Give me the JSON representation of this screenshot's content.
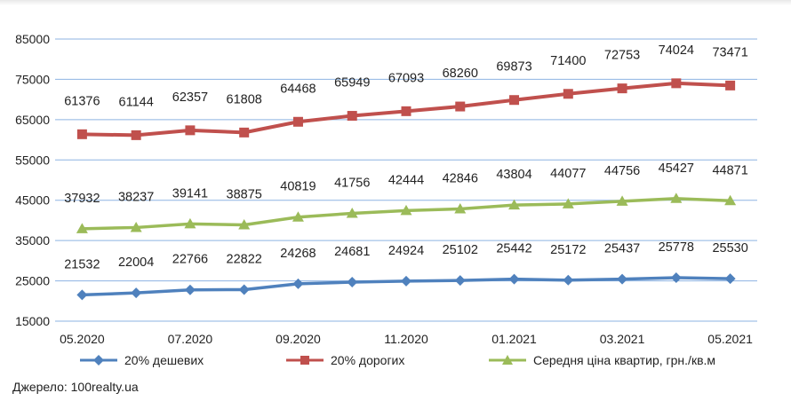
{
  "chart_data": {
    "type": "line",
    "title": "",
    "xlabel": "",
    "ylabel": "",
    "ylim": [
      15000,
      85000
    ],
    "yticks": [
      15000,
      25000,
      35000,
      45000,
      55000,
      65000,
      75000,
      85000
    ],
    "grid": "horizontal",
    "legend_position": "bottom",
    "x": [
      "05.2020",
      "06.2020",
      "07.2020",
      "08.2020",
      "09.2020",
      "10.2020",
      "11.2020",
      "12.2020",
      "01.2021",
      "02.2021",
      "03.2021",
      "04.2021",
      "05.2021"
    ],
    "x_tick_labels": [
      "05.2020",
      "07.2020",
      "09.2020",
      "11.2020",
      "01.2021",
      "03.2021",
      "05.2021"
    ],
    "series": [
      {
        "name": "20% дешевих",
        "color": "#4f81bd",
        "marker": "diamond",
        "values": [
          21532,
          22004,
          22766,
          22822,
          24268,
          24681,
          24924,
          25102,
          25442,
          25172,
          25437,
          25778,
          25530
        ]
      },
      {
        "name": "20% дорогих",
        "color": "#c0504d",
        "marker": "square",
        "values": [
          61376,
          61144,
          62357,
          61808,
          64468,
          65949,
          67093,
          68260,
          69873,
          71400,
          72753,
          74024,
          73471
        ]
      },
      {
        "name": "Середня ціна квартир, грн./кв.м",
        "color": "#9bbb59",
        "marker": "triangle",
        "values": [
          37932,
          38237,
          39141,
          38875,
          40819,
          41756,
          42444,
          42846,
          43804,
          44077,
          44756,
          45427,
          44871
        ]
      }
    ]
  },
  "source_text": "Джерело: 100realty.ua"
}
